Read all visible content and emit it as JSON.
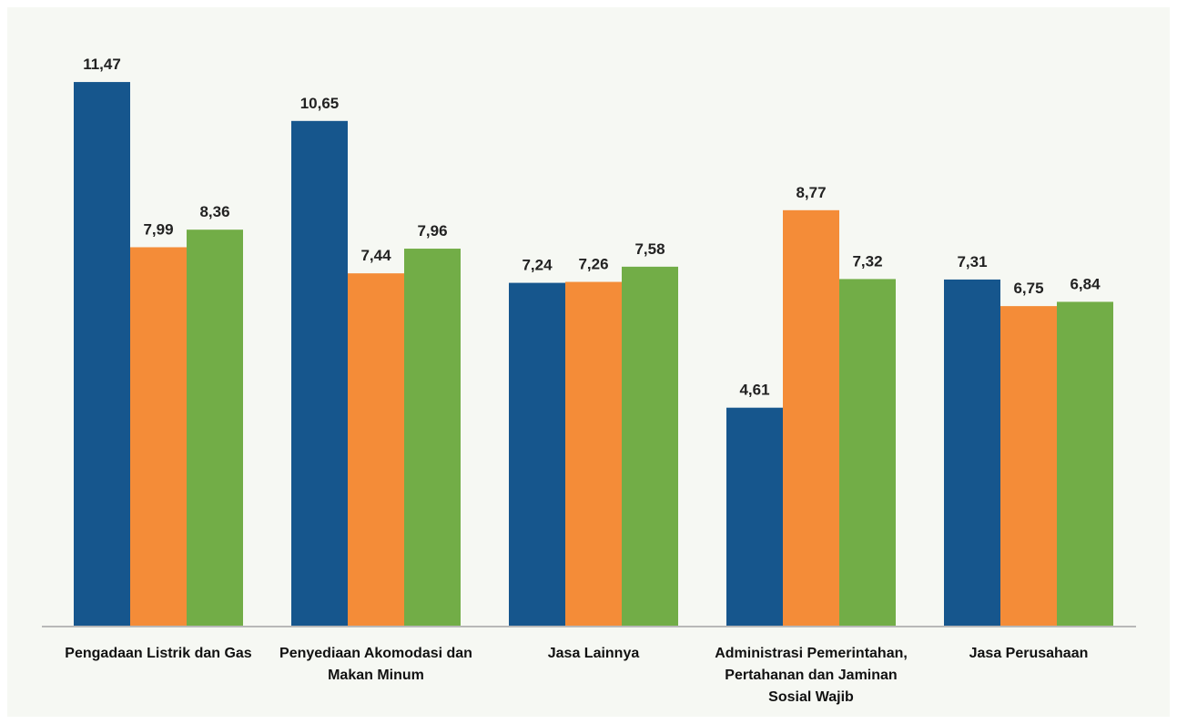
{
  "chart_data": {
    "type": "bar",
    "title": "",
    "xlabel": "",
    "ylabel": "",
    "ylim": [
      0,
      12
    ],
    "grid": false,
    "legend": "none",
    "categories": [
      [
        "Pengadaan Listrik dan Gas"
      ],
      [
        "Penyediaan Akomodasi dan",
        "Makan Minum"
      ],
      [
        "Jasa Lainnya"
      ],
      [
        "Administrasi Pemerintahan,",
        "Pertahanan dan Jaminan",
        "Sosial Wajib"
      ],
      [
        "Jasa Perusahaan"
      ]
    ],
    "series": [
      {
        "color": "#16568d",
        "values": [
          11.47,
          10.65,
          7.24,
          4.61,
          7.31
        ],
        "labels": [
          "11,47",
          "10,65",
          "7,24",
          "4,61",
          "7,31"
        ]
      },
      {
        "color": "#f48c38",
        "values": [
          7.99,
          7.44,
          7.26,
          8.77,
          6.75
        ],
        "labels": [
          "7,99",
          "7,44",
          "7,26",
          "8,77",
          "6,75"
        ]
      },
      {
        "color": "#72ad47",
        "values": [
          8.36,
          7.96,
          7.58,
          7.32,
          6.84
        ],
        "labels": [
          "8,36",
          "7,96",
          "7,58",
          "7,32",
          "6,84"
        ]
      }
    ]
  }
}
